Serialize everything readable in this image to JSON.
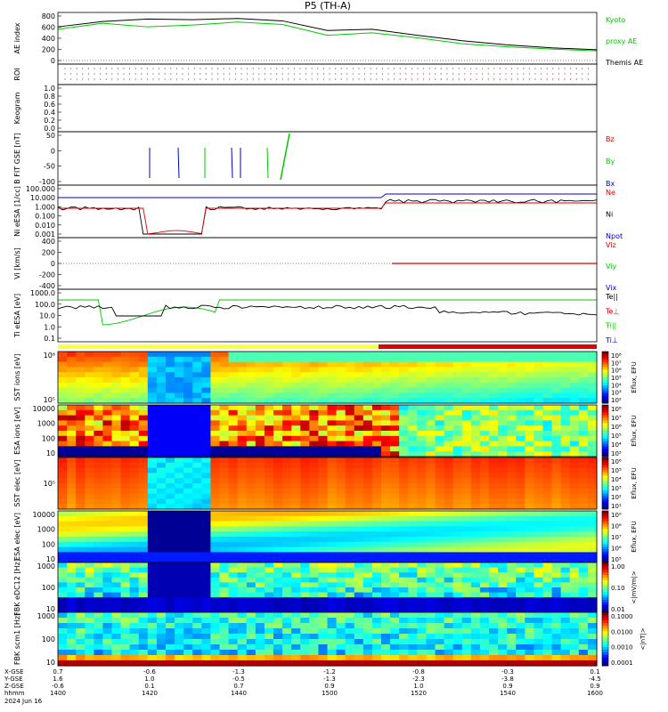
{
  "title": "P5 (TH-A)",
  "date_label": "2024 Jun 16",
  "footer_rows": [
    {
      "label": "X-GSE",
      "values": [
        "0.7",
        "-0.6",
        "-1.3",
        "-1.2",
        "-0.8",
        "-0.3",
        "0.1"
      ]
    },
    {
      "label": "Y-GSE",
      "values": [
        "1.6",
        "1.0",
        "-0.5",
        "-1.3",
        "-2.3",
        "-3.8",
        "-4.5"
      ]
    },
    {
      "label": "Z-GSE",
      "values": [
        "-0.6",
        "0.1",
        "0.7",
        "0.9",
        "1.0",
        "0.9",
        "0.9"
      ]
    },
    {
      "label": "hhmm",
      "values": [
        "1400",
        "1420",
        "1440",
        "1500",
        "1520",
        "1540",
        "1600"
      ]
    }
  ],
  "colors": {
    "red": "#e00000",
    "green": "#00c800",
    "blue": "#0000d0",
    "black": "#000000",
    "yellow": "#ffff40"
  },
  "chart_data": [
    {
      "type": "line",
      "id": "ae",
      "ylabel": "AE index",
      "ylim": [
        -60,
        800
      ],
      "yticks": [
        "800",
        "600",
        "400",
        "200",
        "0"
      ],
      "x": [
        1400,
        1410,
        1420,
        1430,
        1440,
        1450,
        1500,
        1510,
        1520,
        1530,
        1540,
        1550,
        1600
      ],
      "series": [
        {
          "name": "Kyoto proxy AE",
          "color": "#00c800",
          "values": [
            520,
            620,
            560,
            590,
            640,
            600,
            420,
            460,
            380,
            280,
            230,
            190,
            160
          ]
        },
        {
          "name": "Themis AE",
          "color": "#000000",
          "values": [
            560,
            650,
            690,
            680,
            700,
            660,
            500,
            520,
            420,
            330,
            260,
            210,
            180
          ]
        }
      ],
      "labels": [
        {
          "text": "Kyoto",
          "color": "#00c800"
        },
        {
          "text": "proxy AE",
          "color": "#00c800"
        },
        {
          "text": "Themis AE",
          "color": "#000000"
        }
      ]
    },
    {
      "type": "scatter",
      "id": "roi",
      "ylabel": "ROI",
      "yticks": []
    },
    {
      "type": "line",
      "id": "kp",
      "ylabel": "Keogram",
      "yticks": [
        "1.0",
        "0.8",
        "0.6",
        "0.4",
        "0.2",
        "0.0"
      ]
    },
    {
      "type": "line",
      "id": "bfit",
      "ylabel": "B FIT GSE [nT]",
      "ylim": [
        -100,
        100
      ],
      "yticks": [
        "50",
        "0",
        "-50",
        "-100"
      ],
      "labels": [
        {
          "text": "Bz",
          "color": "#e00000"
        },
        {
          "text": "By",
          "color": "#00c800"
        },
        {
          "text": "Bx",
          "color": "#0000d0"
        }
      ]
    },
    {
      "type": "line",
      "id": "ni",
      "ylabel": "Ni eESA [1/cc]",
      "ylim": [
        0.001,
        100
      ],
      "scale": "log",
      "yticks": [
        "100.000",
        "10.000",
        "1.000",
        "0.100",
        "0.010",
        "0.001"
      ],
      "labels": [
        {
          "text": "Ne",
          "color": "#e00000"
        },
        {
          "text": "Ni",
          "color": "#000000"
        },
        {
          "text": "Npot",
          "color": "#0000d0"
        }
      ]
    },
    {
      "type": "line",
      "id": "vi",
      "ylabel": "Vi [km/s]",
      "ylim": [
        -500,
        500
      ],
      "yticks": [
        "400",
        "200",
        "0",
        "-200",
        "-400"
      ],
      "labels": [
        {
          "text": "Viz",
          "color": "#e00000"
        },
        {
          "text": "Viy",
          "color": "#00c800"
        },
        {
          "text": "Vix",
          "color": "#0000d0"
        }
      ]
    },
    {
      "type": "line",
      "id": "ti",
      "ylabel": "Ti eESA [eV]",
      "ylim": [
        0.1,
        10000
      ],
      "scale": "log",
      "yticks": [
        "1000.0",
        "100.0",
        "10.0",
        "1.0",
        "0.1"
      ],
      "labels": [
        {
          "text": "Te||",
          "color": "#000000"
        },
        {
          "text": "Te⊥",
          "color": "#e00000"
        },
        {
          "text": "Ti||",
          "color": "#00c800"
        },
        {
          "text": "Ti⊥",
          "color": "#0000d0"
        }
      ]
    },
    {
      "type": "heatmap",
      "id": "sst_i",
      "ylabel": "SST ions [eV]",
      "cb_label": "Eflux, EFU",
      "yticks": [
        "10⁶",
        "10⁵"
      ],
      "cb_ticks": [
        "10⁸",
        "10⁷",
        "10⁶",
        "10⁵",
        "10⁴",
        "10³",
        "10²"
      ]
    },
    {
      "type": "heatmap",
      "id": "esa_i",
      "ylabel": "ESA ions [eV]",
      "cb_label": "Eflux, EFU",
      "yticks": [
        "10000",
        "1000",
        "100",
        "10"
      ],
      "cb_ticks": [
        "10⁸",
        "10⁷",
        "10⁶",
        "10⁵",
        "10⁴",
        "10³"
      ]
    },
    {
      "type": "heatmap",
      "id": "sst_e",
      "ylabel": "SST elec [eV]",
      "cb_label": "Eflux, EFU",
      "yticks": [
        "10⁵"
      ],
      "cb_ticks": [
        "10⁶",
        "10⁵",
        "10⁴",
        "10³",
        "10²",
        "10¹"
      ]
    },
    {
      "type": "heatmap",
      "id": "esa_e",
      "ylabel": "ESA elec [eV]",
      "cb_label": "Eflux, EFU",
      "yticks": [
        "10000",
        "1000",
        "100",
        "10"
      ],
      "cb_ticks": [
        "10⁹",
        "10⁸",
        "10⁷",
        "10⁶",
        "10⁵"
      ]
    },
    {
      "type": "heatmap",
      "id": "fbk_e",
      "ylabel": "FBK eDC12 [Hz]",
      "cb_label": "<|mV/m|>",
      "yticks": [
        "1000",
        "100",
        "10"
      ],
      "cb_ticks": [
        "1.00",
        "0.10",
        "0.01"
      ]
    },
    {
      "type": "heatmap",
      "id": "fbk_b",
      "ylabel": "FBK scm1 [Hz]",
      "cb_label": "<|nT|>",
      "yticks": [
        "1000",
        "100",
        "10"
      ],
      "cb_ticks": [
        "0.1000",
        "0.0100",
        "0.0010",
        "0.0001"
      ]
    }
  ]
}
